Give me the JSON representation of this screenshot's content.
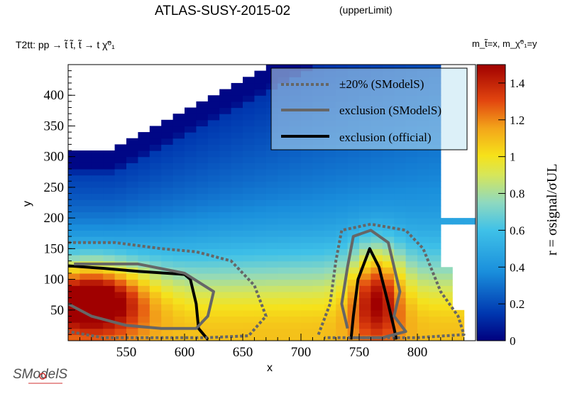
{
  "chart_data": {
    "type": "heatmap",
    "title": "ATLAS-SUSY-2015-02",
    "subtitle": "(upperLimit)",
    "process": "T2tt: pp → t̃ t̃, t̃ → t χ̃⁰₁",
    "mass_note": "m_t̃=x, m_χ̃⁰₁=y",
    "xlabel": "x",
    "ylabel": "y",
    "zlabel": "r = σsignal/σUL",
    "xlim": [
      500,
      850
    ],
    "ylim": [
      0,
      450
    ],
    "zlim": [
      0,
      1.5
    ],
    "x_ticks": [
      550,
      600,
      650,
      700,
      750,
      800
    ],
    "y_ticks": [
      50,
      100,
      150,
      200,
      250,
      300,
      350,
      400
    ],
    "z_ticks": [
      0,
      0.2,
      0.4,
      0.6,
      0.8,
      1,
      1.2,
      1.4
    ],
    "x_tick_labels": [
      "550",
      "600",
      "650",
      "700",
      "750",
      "800"
    ],
    "y_tick_labels": [
      "50",
      "100",
      "150",
      "200",
      "250",
      "300",
      "350",
      "400"
    ],
    "z_tick_labels": [
      "0",
      "0.2",
      "0.4",
      "0.6",
      "0.8",
      "1",
      "1.2",
      "1.4"
    ],
    "legend_position": "top-right",
    "legend": [
      {
        "label": "±20% (SModelS)",
        "style": "dotted",
        "color": "#666666"
      },
      {
        "label": "exclusion (SModelS)",
        "style": "solid",
        "color": "#666666"
      },
      {
        "label": "exclusion (official)",
        "style": "solid",
        "color": "#000000"
      }
    ],
    "colormap": [
      "#00007f",
      "#0050c8",
      "#16a0e6",
      "#78d2d2",
      "#c8e678",
      "#f0dc28",
      "#f08c1e",
      "#d2280a",
      "#a00000"
    ],
    "approx_grid": {
      "cell_size_x": 10,
      "cell_size_y": 10,
      "description_r_regions": "r ~1.2-1.4 at x 505-560, y 20-110; r ~1.0-1.2 at x 740-790, y 20-150; r ~0.2 at top boundary"
    },
    "series": [
      {
        "name": "exclusion (official)",
        "points": [
          [
            500,
            122
          ],
          [
            530,
            118
          ],
          [
            560,
            113
          ],
          [
            600,
            108
          ],
          [
            605,
            100
          ],
          [
            610,
            60
          ],
          [
            612,
            20
          ],
          [
            620,
            2
          ]
        ]
      },
      {
        "name": "exclusion (official)",
        "points": [
          [
            743,
            2
          ],
          [
            745,
            40
          ],
          [
            749,
            100
          ],
          [
            759,
            150
          ],
          [
            767,
            120
          ],
          [
            775,
            60
          ],
          [
            780,
            20
          ],
          [
            782,
            2
          ]
        ]
      },
      {
        "name": "exclusion (SModelS)",
        "points": [
          [
            500,
            60
          ],
          [
            520,
            40
          ],
          [
            550,
            25
          ],
          [
            580,
            20
          ],
          [
            610,
            20
          ],
          [
            620,
            40
          ],
          [
            625,
            80
          ],
          [
            600,
            110
          ],
          [
            560,
            125
          ],
          [
            530,
            125
          ],
          [
            505,
            125
          ]
        ]
      },
      {
        "name": "exclusion (SModelS)",
        "points": [
          [
            745,
            5
          ],
          [
            770,
            5
          ],
          [
            790,
            15
          ],
          [
            780,
            40
          ],
          [
            785,
            80
          ],
          [
            780,
            120
          ],
          [
            775,
            160
          ],
          [
            760,
            180
          ],
          [
            745,
            170
          ],
          [
            740,
            120
          ],
          [
            735,
            60
          ],
          [
            740,
            20
          ]
        ]
      },
      {
        "name": "±20% (SModelS)",
        "points": [
          [
            500,
            160
          ],
          [
            540,
            160
          ],
          [
            580,
            150
          ],
          [
            610,
            145
          ],
          [
            640,
            130
          ],
          [
            660,
            90
          ],
          [
            670,
            40
          ],
          [
            655,
            8
          ],
          [
            620,
            5
          ],
          [
            530,
            5
          ],
          [
            500,
            15
          ]
        ]
      },
      {
        "name": "±20% (SModelS)",
        "points": [
          [
            715,
            10
          ],
          [
            725,
            60
          ],
          [
            730,
            130
          ],
          [
            735,
            180
          ],
          [
            760,
            190
          ],
          [
            790,
            180
          ],
          [
            805,
            150
          ],
          [
            820,
            80
          ],
          [
            835,
            40
          ],
          [
            840,
            10
          ],
          [
            800,
            5
          ],
          [
            720,
            5
          ]
        ]
      }
    ]
  }
}
